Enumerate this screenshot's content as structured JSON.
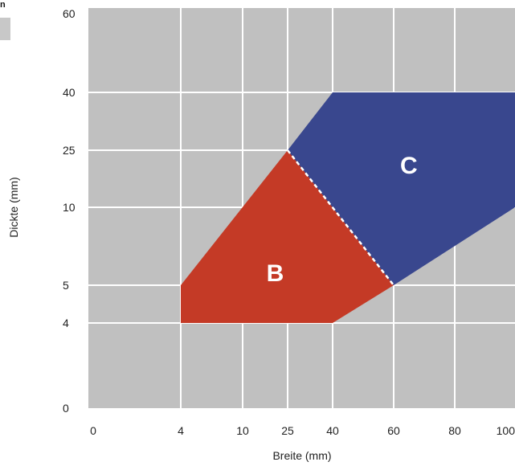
{
  "legend_fragment": {
    "label": "n"
  },
  "colors": {
    "plot_background": "#c0c0c0",
    "grid": "#ffffff",
    "region_B": "#c43a26",
    "region_C": "#39478e",
    "boundary_dash": "#ffffff"
  },
  "chart_data": {
    "type": "area",
    "xlabel": "Breite (mm)",
    "ylabel": "Dickte (mm)",
    "x_scale": "categorical",
    "y_scale": "categorical",
    "x_ticks": [
      "0",
      "4",
      "10",
      "25",
      "40",
      "60",
      "80",
      "100"
    ],
    "y_ticks": [
      "0",
      "4",
      "5",
      "10",
      "25",
      "40",
      "60"
    ],
    "grid": true,
    "legend": "none",
    "regions": [
      {
        "name": "B",
        "color": "#c43a26",
        "points": [
          [
            4,
            4
          ],
          [
            4,
            5
          ],
          [
            25,
            25
          ],
          [
            60,
            5
          ],
          [
            40,
            4
          ]
        ]
      },
      {
        "name": "C",
        "color": "#39478e",
        "points": [
          [
            25,
            25
          ],
          [
            40,
            40
          ],
          [
            100,
            40
          ],
          [
            100,
            10
          ],
          [
            60,
            5
          ]
        ]
      }
    ],
    "boundary": {
      "style": "dashed",
      "points": [
        [
          25,
          25
        ],
        [
          60,
          5
        ]
      ]
    }
  }
}
